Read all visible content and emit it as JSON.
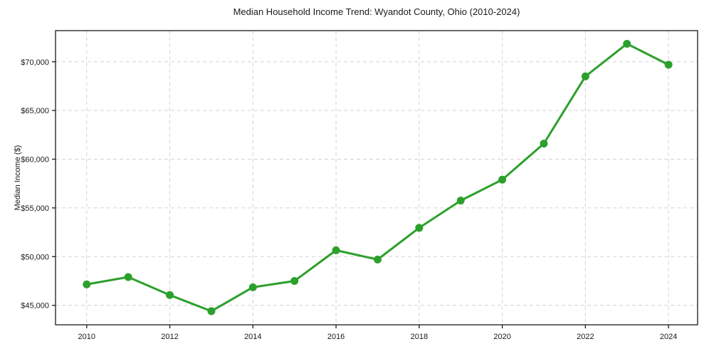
{
  "chart_data": {
    "type": "line",
    "title": "Median Household Income Trend: Wyandot County, Ohio (2010-2024)",
    "xlabel": "",
    "ylabel": "Median Income ($)",
    "x": [
      2010,
      2011,
      2012,
      2013,
      2014,
      2015,
      2016,
      2017,
      2018,
      2019,
      2020,
      2021,
      2022,
      2023,
      2024
    ],
    "series": [
      {
        "name": "Median Household Income",
        "values": [
          47150,
          47900,
          46050,
          44400,
          46850,
          47500,
          50650,
          49700,
          52950,
          55750,
          57900,
          61600,
          68500,
          71850,
          69700
        ]
      }
    ],
    "xlim": [
      2009.25,
      2024.7
    ],
    "ylim": [
      43000,
      73200
    ],
    "x_ticks": [
      2010,
      2012,
      2014,
      2016,
      2018,
      2020,
      2022,
      2024
    ],
    "y_ticks": [
      45000,
      50000,
      55000,
      60000,
      65000,
      70000
    ],
    "y_tick_labels": [
      "$45,000",
      "$50,000",
      "$55,000",
      "$60,000",
      "$65,000",
      "$70,000"
    ],
    "grid": true,
    "legend": "none",
    "colors": {
      "line": "#2ca02c",
      "marker": "#2ca02c",
      "grid": "#d3d3d3",
      "spine": "#1a1a1a",
      "text": "#1a1a1a"
    }
  }
}
